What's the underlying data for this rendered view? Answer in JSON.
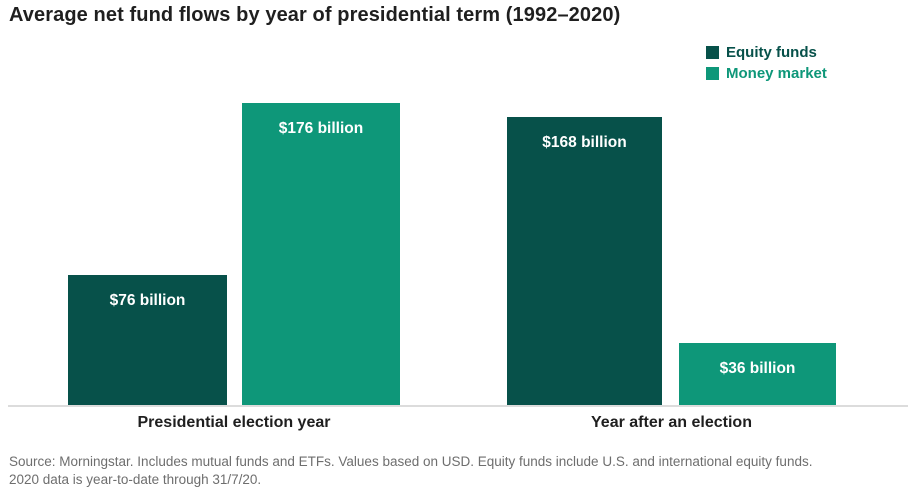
{
  "chart_data": {
    "type": "bar",
    "title": "Average net fund flows by year of presidential term (1992–2020)",
    "categories": [
      "Presidential election year",
      "Year after an election"
    ],
    "series": [
      {
        "name": "Equity funds",
        "color": "#07514a",
        "values": [
          76,
          168
        ],
        "labels": [
          "$76 billion",
          "$168 billion"
        ]
      },
      {
        "name": "Money market",
        "color": "#0e9779",
        "values": [
          176,
          36
        ],
        "labels": [
          "$176 billion",
          "$36 billion"
        ]
      }
    ],
    "unit": "USD billions",
    "ylim": [
      0,
      176
    ],
    "grid": false,
    "legend_position": "top-right",
    "value_label_position": "inside-top",
    "axis_line_color": "#dcdcdc"
  },
  "colors": {
    "equity_funds": "#07514a",
    "money_market": "#0e9779",
    "title_text": "#1f1f1f",
    "source_text": "#6e6e6e",
    "background": "#ffffff"
  },
  "footer": {
    "source": "Source: Morningstar. Includes mutual funds and ETFs. Values based on USD. Equity funds include U.S. and international equity funds.\n2020 data is year-to-date through 31/7/20."
  }
}
